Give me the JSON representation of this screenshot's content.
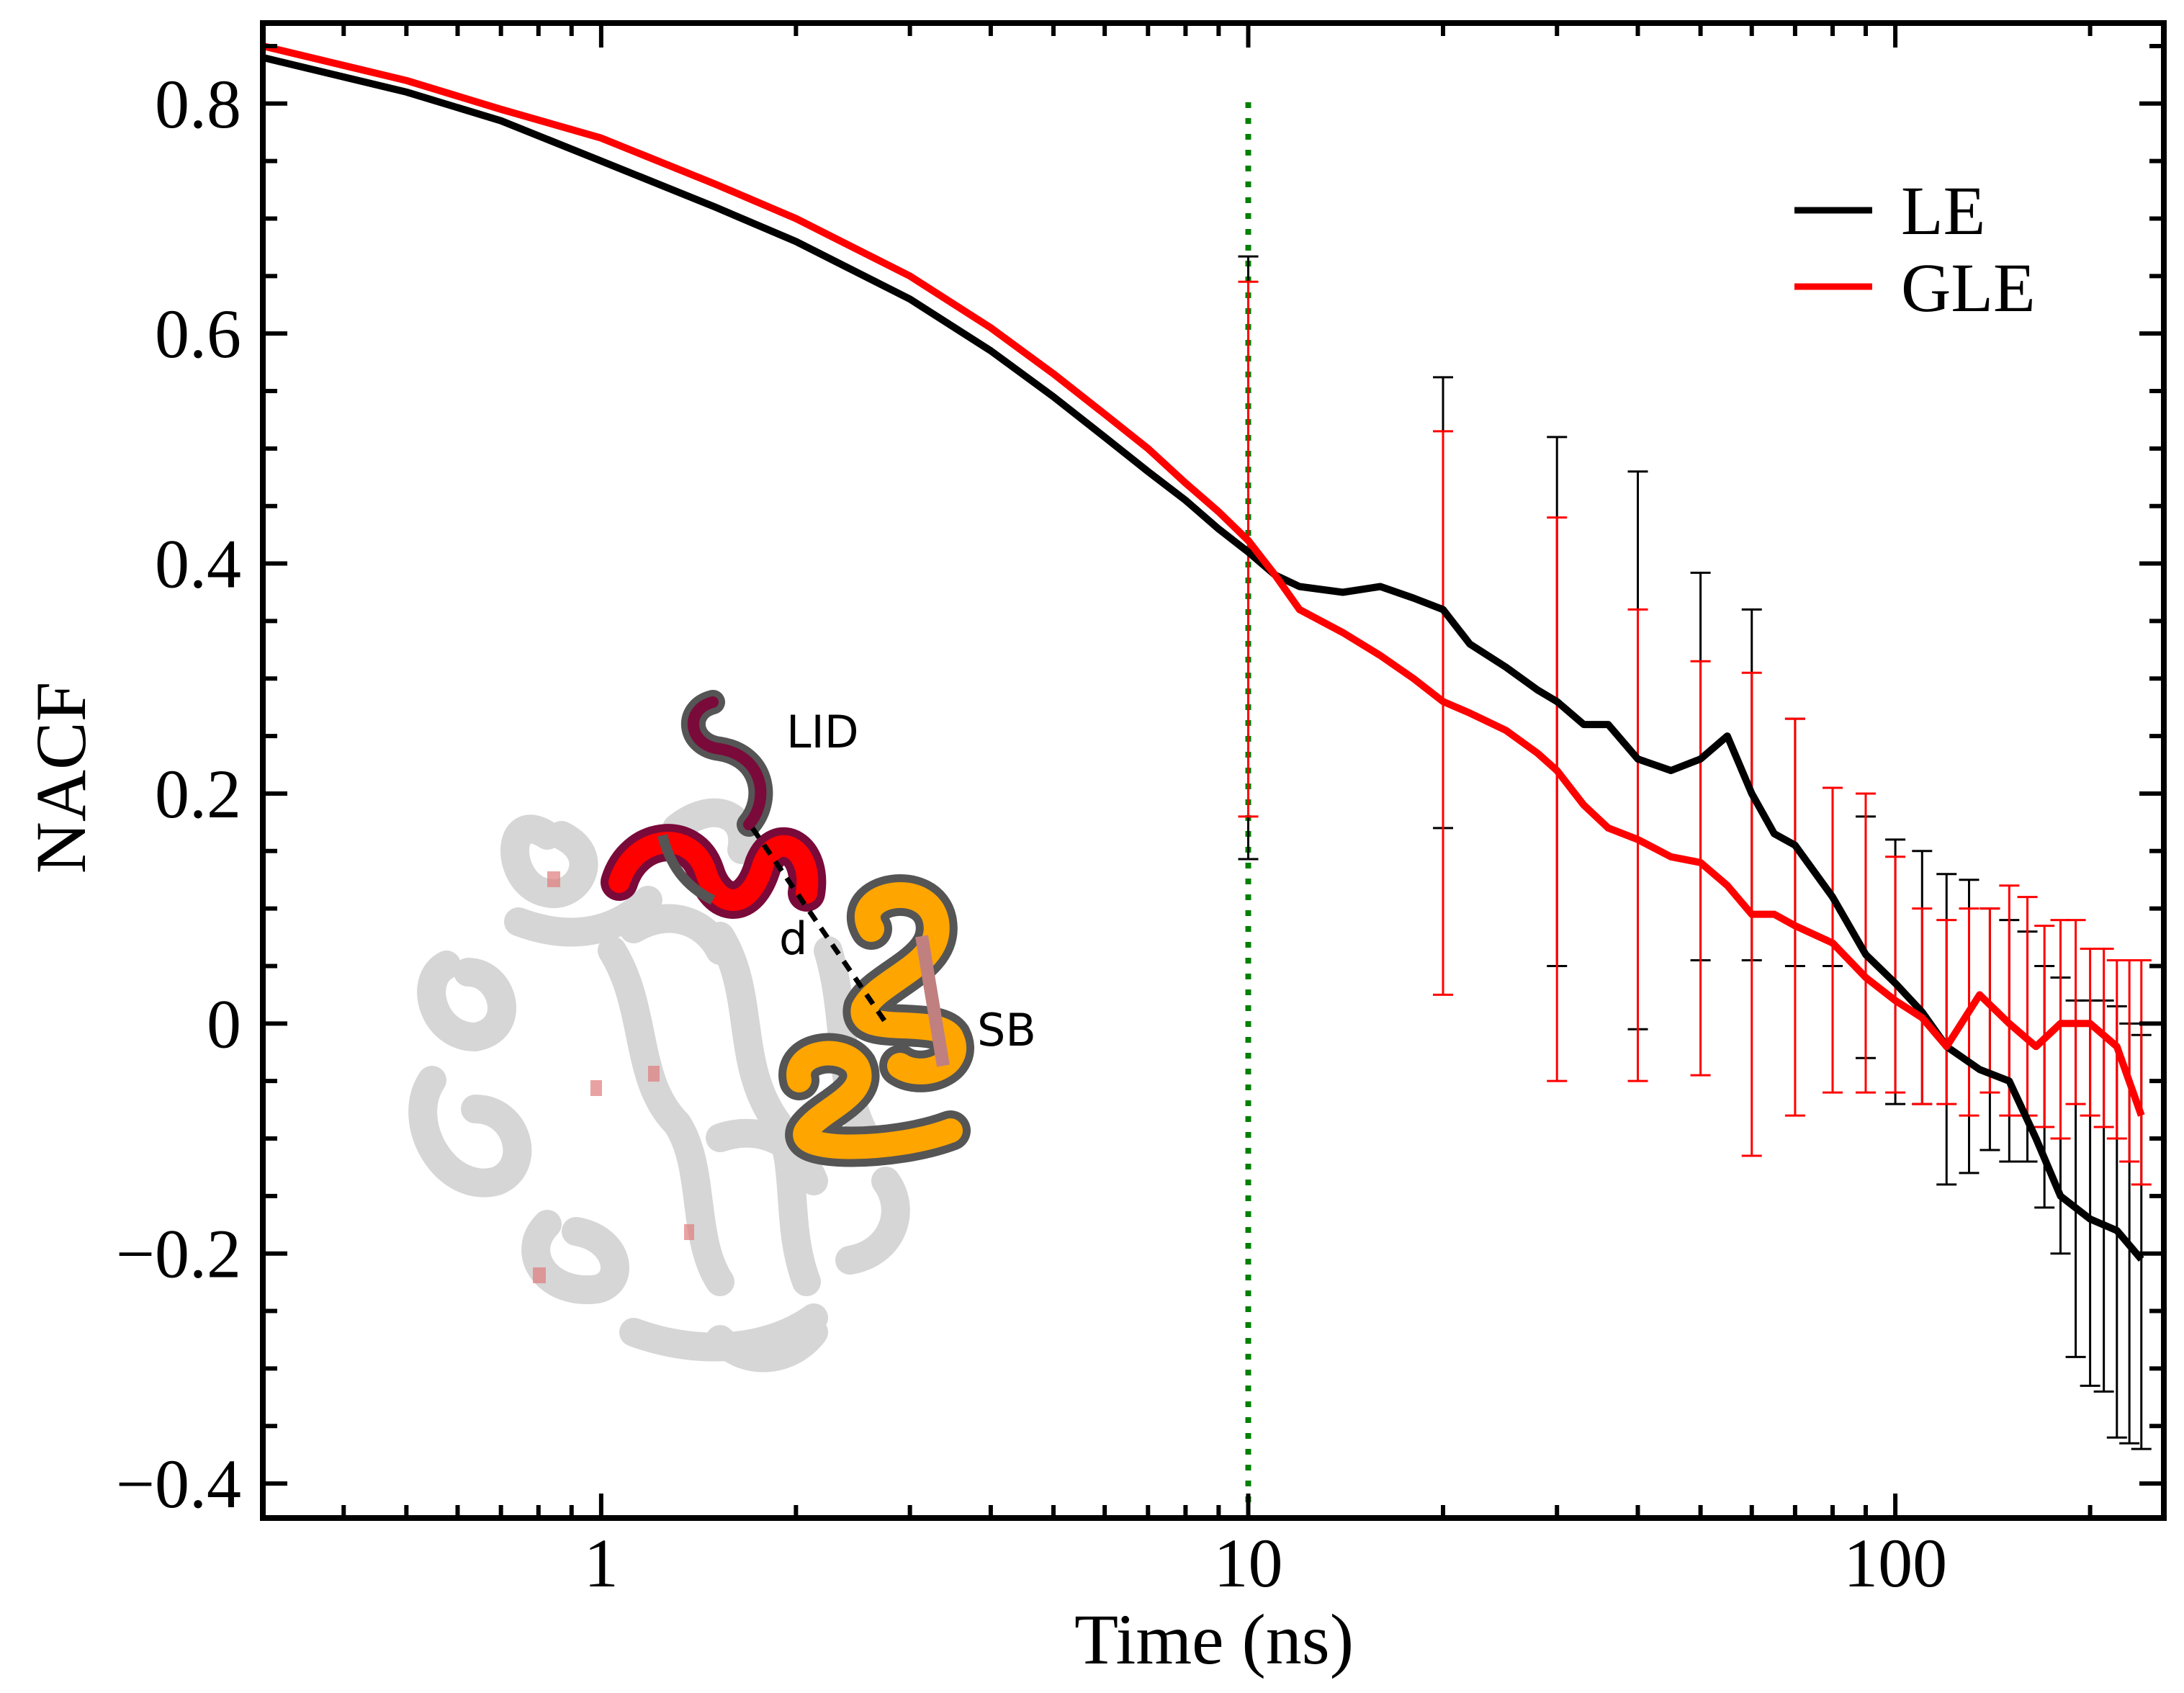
{
  "chart_data": {
    "type": "line",
    "title": "",
    "xlabel": "Time (ns)",
    "ylabel": "NACF",
    "xscale": "log",
    "xlim": [
      0.3,
      260
    ],
    "ylim": [
      -0.43,
      0.87
    ],
    "x_ticks": [
      {
        "value": 1,
        "label": "1"
      },
      {
        "value": 10,
        "label": "10"
      },
      {
        "value": 100,
        "label": "100"
      }
    ],
    "y_ticks": [
      {
        "value": 0.8,
        "label": "0.8"
      },
      {
        "value": 0.6,
        "label": "0.6"
      },
      {
        "value": 0.4,
        "label": "0.4"
      },
      {
        "value": 0.2,
        "label": "0.2"
      },
      {
        "value": 0,
        "label": "0"
      },
      {
        "value": -0.2,
        "label": "−0.2"
      },
      {
        "value": -0.4,
        "label": "−0.4"
      }
    ],
    "legend": {
      "position": "top-right",
      "entries": [
        {
          "name": "LE",
          "color": "#000000"
        },
        {
          "name": "GLE",
          "color": "#ff0000"
        }
      ]
    },
    "vline": {
      "x": 10,
      "color": "#008000",
      "style": "dotted"
    },
    "series": [
      {
        "name": "LE",
        "color": "#000000",
        "x": [
          0.3,
          0.5,
          0.7,
          1.0,
          1.5,
          2.0,
          3.0,
          4.0,
          5.0,
          6.0,
          7.0,
          8.0,
          9.0,
          10.0,
          11.0,
          12.0,
          14.0,
          16.0,
          18.0,
          20.0,
          22.0,
          25.0,
          28.0,
          30.0,
          33.0,
          36.0,
          40.0,
          45.0,
          50.0,
          55.0,
          60.0,
          65.0,
          70.0,
          80.0,
          90.0,
          100.0,
          110.0,
          120.0,
          135.0,
          150.0,
          165.0,
          180.0,
          200.0,
          220.0,
          240.0
        ],
        "y": [
          0.84,
          0.81,
          0.785,
          0.75,
          0.71,
          0.68,
          0.63,
          0.585,
          0.545,
          0.51,
          0.48,
          0.455,
          0.43,
          0.41,
          0.39,
          0.38,
          0.375,
          0.38,
          0.37,
          0.36,
          0.33,
          0.31,
          0.29,
          0.28,
          0.26,
          0.26,
          0.23,
          0.22,
          0.23,
          0.25,
          0.2,
          0.165,
          0.155,
          0.11,
          0.06,
          0.035,
          0.01,
          -0.02,
          -0.04,
          -0.05,
          -0.1,
          -0.15,
          -0.17,
          -0.18,
          -0.205
        ]
      },
      {
        "name": "GLE",
        "color": "#ff0000",
        "x": [
          0.3,
          0.5,
          0.7,
          1.0,
          1.5,
          2.0,
          3.0,
          4.0,
          5.0,
          6.0,
          7.0,
          8.0,
          9.0,
          10.0,
          11.0,
          12.0,
          14.0,
          16.0,
          18.0,
          20.0,
          22.0,
          25.0,
          28.0,
          30.0,
          33.0,
          36.0,
          40.0,
          45.0,
          50.0,
          55.0,
          60.0,
          65.0,
          70.0,
          80.0,
          90.0,
          100.0,
          110.0,
          120.0,
          135.0,
          150.0,
          165.0,
          180.0,
          200.0,
          220.0,
          240.0
        ],
        "y": [
          0.85,
          0.82,
          0.795,
          0.77,
          0.73,
          0.7,
          0.65,
          0.605,
          0.565,
          0.53,
          0.5,
          0.47,
          0.445,
          0.42,
          0.39,
          0.36,
          0.34,
          0.32,
          0.3,
          0.28,
          0.27,
          0.255,
          0.235,
          0.22,
          0.19,
          0.17,
          0.16,
          0.145,
          0.14,
          0.12,
          0.095,
          0.095,
          0.085,
          0.07,
          0.04,
          0.02,
          0.005,
          -0.02,
          0.025,
          0.0,
          -0.02,
          0.0,
          0.0,
          -0.02,
          -0.08
        ]
      }
    ],
    "error_bars": [
      {
        "series": "LE",
        "points": [
          {
            "x": 10,
            "low": 0.143,
            "high": 0.667
          },
          {
            "x": 20,
            "low": 0.17,
            "high": 0.562
          },
          {
            "x": 30,
            "low": 0.05,
            "high": 0.51
          },
          {
            "x": 40,
            "low": -0.005,
            "high": 0.48
          },
          {
            "x": 50,
            "low": 0.055,
            "high": 0.392
          },
          {
            "x": 60,
            "low": 0.055,
            "high": 0.36
          },
          {
            "x": 70,
            "low": 0.05,
            "high": 0.265
          },
          {
            "x": 80,
            "low": 0.05,
            "high": 0.205
          },
          {
            "x": 90,
            "low": -0.03,
            "high": 0.18
          },
          {
            "x": 100,
            "low": -0.07,
            "high": 0.16
          },
          {
            "x": 110,
            "low": -0.07,
            "high": 0.15
          },
          {
            "x": 120,
            "low": -0.14,
            "high": 0.13
          },
          {
            "x": 130,
            "low": -0.13,
            "high": 0.125
          },
          {
            "x": 140,
            "low": -0.11,
            "high": 0.1
          },
          {
            "x": 150,
            "low": -0.12,
            "high": 0.09
          },
          {
            "x": 160,
            "low": -0.12,
            "high": 0.08
          },
          {
            "x": 170,
            "low": -0.16,
            "high": 0.05
          },
          {
            "x": 180,
            "low": -0.2,
            "high": 0.04
          },
          {
            "x": 190,
            "low": -0.29,
            "high": 0.02
          },
          {
            "x": 200,
            "low": -0.315,
            "high": 0.02
          },
          {
            "x": 210,
            "low": -0.32,
            "high": 0.02
          },
          {
            "x": 220,
            "low": -0.36,
            "high": 0.015
          },
          {
            "x": 230,
            "low": -0.365,
            "high": 0.0
          },
          {
            "x": 240,
            "low": -0.37,
            "high": -0.01
          }
        ]
      },
      {
        "series": "GLE",
        "points": [
          {
            "x": 10,
            "low": 0.18,
            "high": 0.645
          },
          {
            "x": 20,
            "low": 0.025,
            "high": 0.515
          },
          {
            "x": 30,
            "low": -0.05,
            "high": 0.44
          },
          {
            "x": 40,
            "low": -0.05,
            "high": 0.36
          },
          {
            "x": 50,
            "low": -0.045,
            "high": 0.315
          },
          {
            "x": 60,
            "low": -0.115,
            "high": 0.305
          },
          {
            "x": 70,
            "low": -0.08,
            "high": 0.265
          },
          {
            "x": 80,
            "low": -0.06,
            "high": 0.205
          },
          {
            "x": 90,
            "low": -0.06,
            "high": 0.2
          },
          {
            "x": 100,
            "low": -0.06,
            "high": 0.145
          },
          {
            "x": 110,
            "low": -0.07,
            "high": 0.1
          },
          {
            "x": 120,
            "low": -0.07,
            "high": 0.09
          },
          {
            "x": 130,
            "low": -0.08,
            "high": 0.1
          },
          {
            "x": 140,
            "low": -0.06,
            "high": 0.1
          },
          {
            "x": 150,
            "low": -0.08,
            "high": 0.12
          },
          {
            "x": 160,
            "low": -0.08,
            "high": 0.11
          },
          {
            "x": 170,
            "low": -0.09,
            "high": 0.085
          },
          {
            "x": 180,
            "low": -0.1,
            "high": 0.09
          },
          {
            "x": 190,
            "low": -0.07,
            "high": 0.09
          },
          {
            "x": 200,
            "low": -0.08,
            "high": 0.065
          },
          {
            "x": 210,
            "low": -0.09,
            "high": 0.065
          },
          {
            "x": 220,
            "low": -0.1,
            "high": 0.055
          },
          {
            "x": 230,
            "low": -0.12,
            "high": 0.055
          },
          {
            "x": 240,
            "low": -0.14,
            "high": 0.055
          }
        ]
      }
    ],
    "inset": {
      "description_labels": [
        "LID",
        "d",
        "SB"
      ],
      "colors": {
        "lid": "#ff0000",
        "lid_dark": "#7a0a3a",
        "sb": "#ffa500",
        "sb_dark": "#555555",
        "body": "#cccccc"
      }
    }
  }
}
